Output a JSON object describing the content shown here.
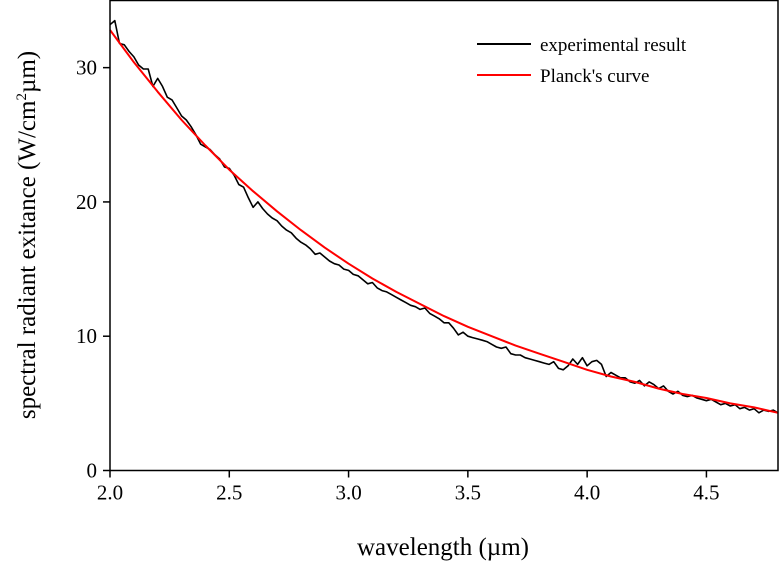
{
  "chart_data": {
    "type": "line",
    "title": "",
    "xlabel": "wavelength (µm)",
    "ylabel_main": "spectral radiant exitance (W/cm",
    "ylabel_sup": "2",
    "ylabel_tail": "µm)",
    "xlim": [
      2.0,
      4.8
    ],
    "ylim": [
      0,
      35
    ],
    "xticks": [
      2.0,
      2.5,
      3.0,
      3.5,
      4.0,
      4.5
    ],
    "xtick_labels": [
      "2.0",
      "2.5",
      "3.0",
      "3.5",
      "4.0",
      "4.5"
    ],
    "yticks": [
      0,
      10,
      20,
      30
    ],
    "ytick_labels": [
      "0",
      "10",
      "20",
      "30"
    ],
    "grid": false,
    "legend_position": "top-right",
    "series": [
      {
        "name": "experimental result",
        "color": "#000000",
        "x": [
          2.0,
          2.02,
          2.04,
          2.06,
          2.08,
          2.1,
          2.12,
          2.14,
          2.16,
          2.18,
          2.2,
          2.22,
          2.24,
          2.26,
          2.28,
          2.3,
          2.32,
          2.34,
          2.36,
          2.38,
          2.4,
          2.42,
          2.44,
          2.46,
          2.48,
          2.5,
          2.52,
          2.54,
          2.56,
          2.58,
          2.6,
          2.62,
          2.64,
          2.66,
          2.68,
          2.7,
          2.72,
          2.74,
          2.76,
          2.78,
          2.8,
          2.82,
          2.84,
          2.86,
          2.88,
          2.9,
          2.92,
          2.94,
          2.96,
          2.98,
          3.0,
          3.02,
          3.04,
          3.06,
          3.08,
          3.1,
          3.12,
          3.14,
          3.16,
          3.18,
          3.2,
          3.22,
          3.24,
          3.26,
          3.28,
          3.3,
          3.32,
          3.34,
          3.36,
          3.38,
          3.4,
          3.42,
          3.44,
          3.46,
          3.48,
          3.5,
          3.52,
          3.54,
          3.56,
          3.58,
          3.6,
          3.62,
          3.64,
          3.66,
          3.68,
          3.7,
          3.72,
          3.74,
          3.76,
          3.78,
          3.8,
          3.82,
          3.84,
          3.86,
          3.88,
          3.9,
          3.92,
          3.94,
          3.96,
          3.98,
          4.0,
          4.02,
          4.04,
          4.06,
          4.08,
          4.1,
          4.12,
          4.14,
          4.16,
          4.18,
          4.2,
          4.22,
          4.24,
          4.26,
          4.28,
          4.3,
          4.32,
          4.34,
          4.36,
          4.38,
          4.4,
          4.42,
          4.44,
          4.46,
          4.48,
          4.5,
          4.52,
          4.54,
          4.56,
          4.58,
          4.6,
          4.62,
          4.64,
          4.66,
          4.68,
          4.7,
          4.72,
          4.74,
          4.76,
          4.78,
          4.8
        ],
        "y": [
          33.2,
          33.5,
          31.8,
          31.7,
          31.2,
          30.8,
          30.2,
          29.9,
          29.9,
          28.6,
          29.2,
          28.6,
          27.8,
          27.6,
          27.0,
          26.4,
          26.1,
          25.6,
          25.0,
          24.3,
          24.1,
          23.9,
          23.5,
          23.2,
          22.6,
          22.5,
          22.0,
          21.3,
          21.1,
          20.3,
          19.6,
          20.0,
          19.5,
          19.1,
          18.8,
          18.6,
          18.2,
          17.9,
          17.7,
          17.3,
          17.0,
          16.8,
          16.5,
          16.1,
          16.2,
          15.9,
          15.6,
          15.4,
          15.3,
          15.0,
          14.9,
          14.6,
          14.5,
          14.2,
          13.9,
          14.0,
          13.6,
          13.4,
          13.3,
          13.1,
          12.9,
          12.7,
          12.5,
          12.3,
          12.2,
          12.0,
          12.1,
          11.7,
          11.5,
          11.3,
          11.0,
          11.0,
          10.6,
          10.1,
          10.3,
          10.0,
          9.9,
          9.8,
          9.7,
          9.6,
          9.4,
          9.2,
          9.1,
          9.2,
          8.7,
          8.6,
          8.6,
          8.4,
          8.3,
          8.2,
          8.1,
          8.0,
          7.9,
          8.1,
          7.6,
          7.5,
          7.8,
          8.3,
          7.9,
          8.4,
          7.8,
          8.1,
          8.2,
          7.9,
          7.0,
          7.3,
          7.1,
          6.9,
          6.9,
          6.6,
          6.5,
          6.7,
          6.3,
          6.6,
          6.4,
          6.1,
          6.3,
          5.9,
          5.7,
          5.9,
          5.6,
          5.5,
          5.6,
          5.4,
          5.3,
          5.2,
          5.3,
          5.1,
          4.9,
          5.0,
          4.8,
          4.9,
          4.6,
          4.7,
          4.5,
          4.6,
          4.3,
          4.5,
          4.4,
          4.5,
          4.3
        ]
      },
      {
        "name": "Planck's curve",
        "color": "#ff0000",
        "x": [
          2.0,
          2.1,
          2.2,
          2.3,
          2.4,
          2.5,
          2.6,
          2.7,
          2.8,
          2.9,
          3.0,
          3.1,
          3.2,
          3.3,
          3.4,
          3.5,
          3.6,
          3.7,
          3.8,
          3.9,
          4.0,
          4.1,
          4.2,
          4.3,
          4.4,
          4.5,
          4.6,
          4.7,
          4.8
        ],
        "y": [
          32.8,
          30.4,
          28.2,
          26.1,
          24.2,
          22.4,
          20.8,
          19.3,
          17.9,
          16.6,
          15.4,
          14.3,
          13.3,
          12.4,
          11.5,
          10.7,
          10.0,
          9.3,
          8.7,
          8.1,
          7.5,
          7.0,
          6.6,
          6.1,
          5.7,
          5.4,
          5.0,
          4.7,
          4.3
        ]
      }
    ]
  }
}
